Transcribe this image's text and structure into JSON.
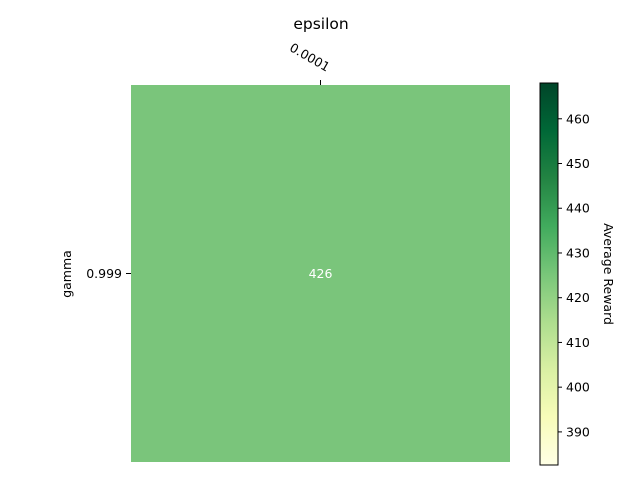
{
  "chart_data": {
    "type": "heatmap",
    "title": "",
    "xlabel": "epsilon",
    "ylabel": "gamma",
    "x_categories": [
      "0.0001"
    ],
    "y_categories": [
      "0.999"
    ],
    "values": [
      [
        426
      ]
    ],
    "cell_labels": [
      [
        "426"
      ]
    ],
    "value_label_color": "#ffffff",
    "cell_color": "#7ac57b",
    "colormap": "YlGn",
    "colorbar": {
      "label": "Average Reward",
      "vmin": 382.6,
      "vmax": 468.0,
      "ticks": [
        390,
        400,
        410,
        420,
        430,
        440,
        450,
        460
      ],
      "tick_labels": [
        "390",
        "400",
        "410",
        "420",
        "430",
        "440",
        "450",
        "460"
      ],
      "gradient_colors": [
        "#ffffe5",
        "#f7fcb9",
        "#d9f0a3",
        "#addd8e",
        "#78c679",
        "#41ab5d",
        "#238443",
        "#006837",
        "#004529"
      ]
    },
    "x_tick_position": "top",
    "grid": false
  }
}
